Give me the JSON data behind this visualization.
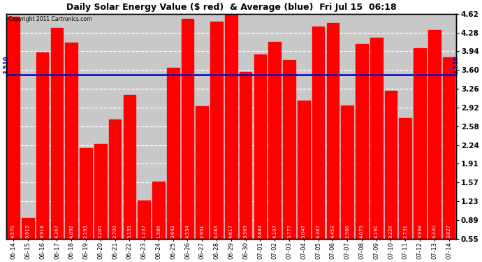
{
  "title": "Daily Solar Energy Value ($ red)  & Average (blue)  Fri Jul 15  06:18",
  "copyright": "Copyright 2011 Cartronics.com",
  "average": 3.51,
  "bar_color": "#FF0000",
  "avg_line_color": "#0000CC",
  "background_color": "#FFFFFF",
  "plot_bg_color": "#C8C8C8",
  "ylim": [
    0.55,
    4.62
  ],
  "yticks": [
    0.55,
    0.89,
    1.23,
    1.57,
    1.91,
    2.24,
    2.58,
    2.92,
    3.26,
    3.6,
    3.94,
    4.28,
    4.62
  ],
  "categories": [
    "06-14",
    "06-15",
    "06-16",
    "06-17",
    "06-18",
    "06-19",
    "06-20",
    "06-21",
    "06-22",
    "06-23",
    "06-24",
    "06-25",
    "06-26",
    "06-27",
    "06-28",
    "06-29",
    "06-30",
    "07-01",
    "07-02",
    "07-03",
    "07-04",
    "07-05",
    "07-06",
    "07-07",
    "07-08",
    "07-09",
    "07-10",
    "07-11",
    "07-12",
    "07-13",
    "07-14"
  ],
  "values": [
    4.57,
    0.919,
    3.918,
    4.367,
    4.092,
    2.193,
    2.265,
    2.709,
    3.155,
    1.237,
    1.586,
    3.642,
    4.534,
    2.951,
    4.483,
    4.617,
    3.569,
    3.884,
    4.107,
    3.777,
    3.047,
    4.387,
    4.453,
    2.966,
    4.075,
    4.191,
    3.226,
    2.731,
    3.998,
    4.33,
    3.827
  ]
}
